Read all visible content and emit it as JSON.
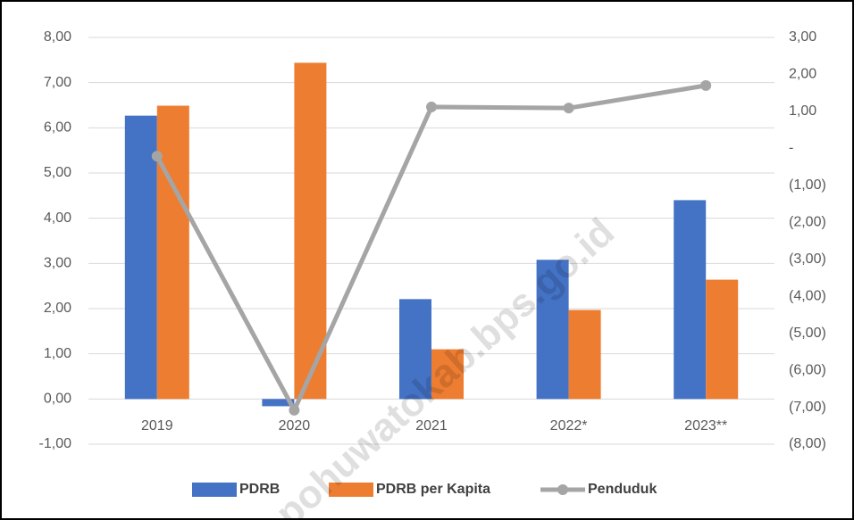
{
  "chart_data": {
    "type": "bar_line",
    "categories": [
      "2019",
      "2020",
      "2021",
      "2022*",
      "2023**"
    ],
    "series": [
      {
        "name": "PDRB",
        "color": "#4472c4",
        "values": [
          6.27,
          -0.16,
          2.21,
          3.08,
          4.4
        ]
      },
      {
        "name": "PDRB per Kapita",
        "color": "#ed7d31",
        "values": [
          6.49,
          7.44,
          1.1,
          1.97,
          2.64
        ]
      },
      {
        "name": "Penduduk",
        "color": "#a5a5a5",
        "axis": "y2",
        "values": [
          -0.21,
          -7.08,
          1.12,
          1.09,
          1.7
        ]
      }
    ],
    "ylim": [
      -1,
      8
    ],
    "yticks": [
      {
        "value": -1,
        "label": "-1,00"
      },
      {
        "value": 0,
        "label": "0,00"
      },
      {
        "value": 1,
        "label": "1,00"
      },
      {
        "value": 2,
        "label": "2,00"
      },
      {
        "value": 3,
        "label": "3,00"
      },
      {
        "value": 4,
        "label": "4,00"
      },
      {
        "value": 5,
        "label": "5,00"
      },
      {
        "value": 6,
        "label": "6,00"
      },
      {
        "value": 7,
        "label": "7,00"
      },
      {
        "value": 8,
        "label": "8,00"
      }
    ],
    "y2lim": [
      -8,
      3
    ],
    "y2ticks": [
      {
        "value": -8,
        "label": "(8,00)"
      },
      {
        "value": -7,
        "label": "(7,00)"
      },
      {
        "value": -6,
        "label": "(6,00)"
      },
      {
        "value": -5,
        "label": "(5,00)"
      },
      {
        "value": -4,
        "label": "(4,00)"
      },
      {
        "value": -3,
        "label": "(3,00)"
      },
      {
        "value": -2,
        "label": "(2,00)"
      },
      {
        "value": -1,
        "label": "(1,00)"
      },
      {
        "value": 0,
        "label": "-"
      },
      {
        "value": 1,
        "label": "1,00"
      },
      {
        "value": 2,
        "label": "2,00"
      },
      {
        "value": 3,
        "label": "3,00"
      }
    ],
    "grid": true,
    "legend": "bottom",
    "watermark": "pohuwatokab.bps.go.id"
  }
}
